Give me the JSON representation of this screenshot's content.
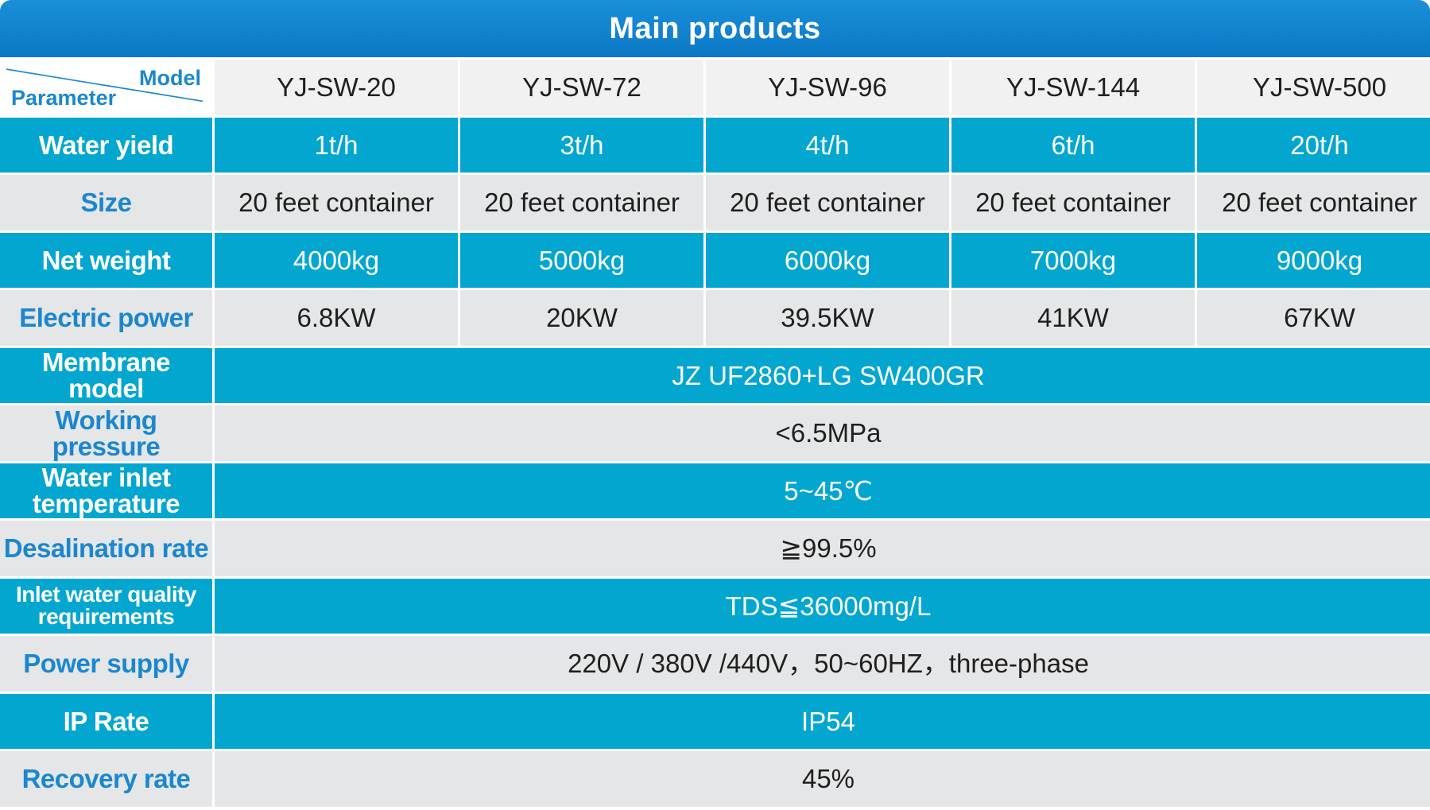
{
  "title": "Main products",
  "corner": {
    "model_label": "Model",
    "parameter_label": "Parameter"
  },
  "models": [
    "YJ-SW-20",
    "YJ-SW-72",
    "YJ-SW-96",
    "YJ-SW-144",
    "YJ-SW-500"
  ],
  "rows_per_model": [
    {
      "label": "Water yield",
      "values": [
        "1t/h",
        "3t/h",
        "4t/h",
        "6t/h",
        "20t/h"
      ]
    },
    {
      "label": "Size",
      "values": [
        "20 feet container",
        "20 feet container",
        "20 feet container",
        "20 feet container",
        "20 feet container"
      ]
    },
    {
      "label": "Net weight",
      "values": [
        "4000kg",
        "5000kg",
        "6000kg",
        "7000kg",
        "9000kg"
      ]
    },
    {
      "label": "Electric power",
      "values": [
        "6.8KW",
        "20KW",
        "39.5KW",
        "41KW",
        "67KW"
      ]
    }
  ],
  "rows_shared": [
    {
      "label": "Membrane model",
      "value": "JZ UF2860+LG SW400GR"
    },
    {
      "label": "Working pressure",
      "value": "<6.5MPa"
    },
    {
      "label": "Water inlet temperature",
      "value": "5~45℃"
    },
    {
      "label": "Desalination rate",
      "value": "≧99.5%"
    },
    {
      "label": "Inlet water quality requirements",
      "value": "TDS≦36000mg/L"
    },
    {
      "label": "Power supply",
      "value": "220V / 380V /440V，50~60HZ，three-phase"
    },
    {
      "label": "IP Rate",
      "value": "IP54"
    },
    {
      "label": "Recovery rate",
      "value": "45%"
    }
  ],
  "colors": {
    "header_blue": "#0b78c6",
    "row_blue": "#03a6cf",
    "row_gray": "#e5e6e7",
    "label_blue": "#1a87cf"
  }
}
